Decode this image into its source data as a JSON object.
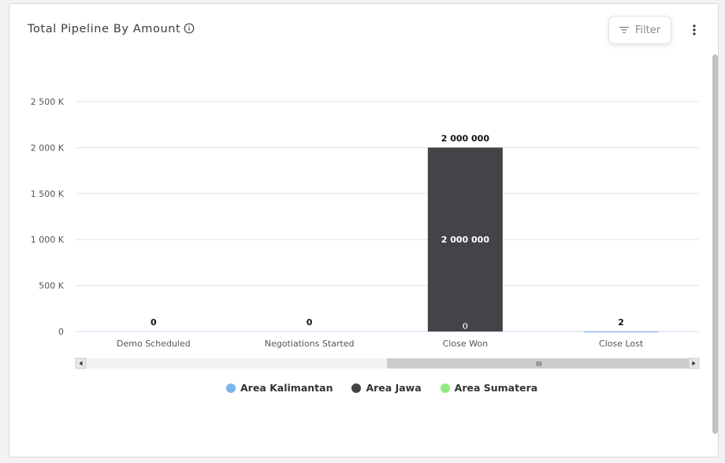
{
  "header": {
    "title": "Total Pipeline By Amount",
    "filter_label": "Filter"
  },
  "icons": {
    "info": "info-icon",
    "filter": "filter-icon",
    "menu": "more-vertical-icon"
  },
  "chart_data": {
    "type": "bar",
    "stacked": true,
    "categories": [
      "Demo Scheduled",
      "Negotiations Started",
      "Close Won",
      "Close Lost"
    ],
    "series": [
      {
        "name": "Area Kalimantan",
        "color": "#7cb5ec",
        "values": [
          0,
          0,
          0,
          2
        ]
      },
      {
        "name": "Area Jawa",
        "color": "#434348",
        "values": [
          0,
          0,
          2000000,
          0
        ]
      },
      {
        "name": "Area Sumatera",
        "color": "#90ed7d",
        "values": [
          0,
          0,
          0,
          0
        ]
      }
    ],
    "total_labels": [
      "0",
      "0",
      "2 000 000",
      "2"
    ],
    "segment_labels": [
      {
        "category": "Close Won",
        "series": "Area Jawa",
        "text": "2 000 000"
      },
      {
        "category": "Close Won",
        "series": "Area Kalimantan",
        "text": "0"
      }
    ],
    "y_ticks": [
      {
        "value": 0,
        "label": "0"
      },
      {
        "value": 500000,
        "label": "500 K"
      },
      {
        "value": 1000000,
        "label": "1 000 K"
      },
      {
        "value": 1500000,
        "label": "1 500 K"
      },
      {
        "value": 2000000,
        "label": "2 000 K"
      },
      {
        "value": 2500000,
        "label": "2 500 K"
      }
    ],
    "ylim": [
      0,
      2500000
    ],
    "grid": true,
    "legend_position": "bottom-center",
    "scrollbar_glyph": "III"
  }
}
